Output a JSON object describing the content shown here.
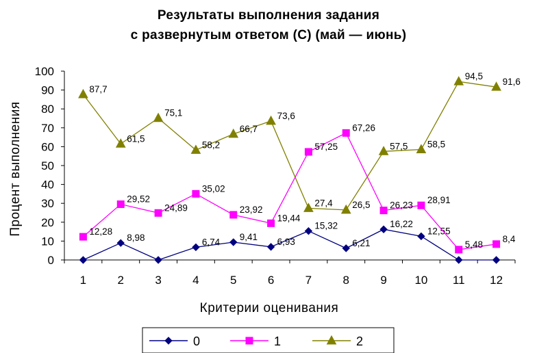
{
  "chart_data": {
    "type": "line",
    "title_line1": "Результаты  выполнения  задания",
    "title_line2": "с  развернутым  ответом  (С)  (май — июнь)",
    "xlabel": "Критерии  оценивания",
    "ylabel": "Процент  выполнения",
    "categories": [
      "1",
      "2",
      "3",
      "4",
      "5",
      "6",
      "7",
      "8",
      "9",
      "10",
      "11",
      "12"
    ],
    "ylim": [
      0,
      100
    ],
    "yticks": [
      "0",
      "10",
      "20",
      "30",
      "40",
      "50",
      "60",
      "70",
      "80",
      "90",
      "100"
    ],
    "grid": false,
    "legend_position": "bottom",
    "series": [
      {
        "name": "0",
        "color": "#000080",
        "marker": "diamond",
        "values": [
          0,
          8.98,
          0,
          6.74,
          9.41,
          6.93,
          15.32,
          6.21,
          16.22,
          12.55,
          0,
          0
        ],
        "labels": [
          "",
          "8,98",
          "",
          "6,74",
          "9,41",
          "6,93",
          "15,32",
          "6,21",
          "16,22",
          "12,55",
          "",
          ""
        ]
      },
      {
        "name": "1",
        "color": "#FF00FF",
        "marker": "square",
        "values": [
          12.28,
          29.52,
          24.89,
          35.02,
          23.92,
          19.44,
          57.25,
          67.26,
          26.23,
          28.91,
          5.48,
          8.4
        ],
        "labels": [
          "12,28",
          "29,52",
          "24,89",
          "35,02",
          "23,92",
          "19,44",
          "57,25",
          "67,26",
          "26,23",
          "28,91",
          "5,48",
          "8,4"
        ]
      },
      {
        "name": "2",
        "color": "#808000",
        "marker": "triangle",
        "values": [
          87.7,
          61.5,
          75.1,
          58.2,
          66.7,
          73.6,
          27.4,
          26.5,
          57.5,
          58.5,
          94.5,
          91.6
        ],
        "labels": [
          "87,7",
          "61,5",
          "75,1",
          "58,2",
          "66,7",
          "73,6",
          "27,4",
          "26,5",
          "57,5",
          "58,5",
          "94,5",
          "91,6"
        ]
      }
    ]
  }
}
